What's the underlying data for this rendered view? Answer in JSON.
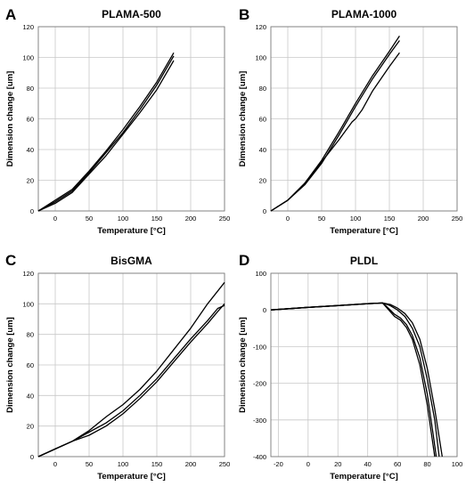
{
  "chart_data": [
    {
      "panel_label": "A",
      "type": "line",
      "title": "PLAMA-500",
      "xlabel": "Temperature [°C]",
      "ylabel": "Dimension change [um]",
      "xlim": [
        -25,
        250
      ],
      "ylim": [
        0,
        120
      ],
      "xticks": [
        0,
        50,
        100,
        150,
        200,
        250
      ],
      "yticks": [
        0,
        20,
        40,
        60,
        80,
        100,
        120
      ],
      "grid": true,
      "series": [
        {
          "x": [
            -25,
            0,
            25,
            50,
            75,
            100,
            125,
            150,
            175
          ],
          "y": [
            0,
            7,
            14,
            26,
            39,
            53,
            68,
            84,
            103
          ]
        },
        {
          "x": [
            -25,
            0,
            25,
            50,
            75,
            100,
            125,
            150,
            175
          ],
          "y": [
            0,
            6,
            13,
            25,
            38,
            51,
            66,
            82,
            101
          ]
        },
        {
          "x": [
            -25,
            0,
            25,
            50,
            75,
            100,
            125,
            150,
            175
          ],
          "y": [
            0,
            5,
            12,
            24,
            36,
            50,
            64,
            79,
            98
          ]
        }
      ]
    },
    {
      "panel_label": "B",
      "type": "line",
      "title": "PLAMA-1000",
      "xlabel": "Temperature [°C]",
      "ylabel": "Dimension change [um]",
      "xlim": [
        -25,
        250
      ],
      "ylim": [
        0,
        120
      ],
      "xticks": [
        0,
        50,
        100,
        150,
        200,
        250
      ],
      "yticks": [
        0,
        20,
        40,
        60,
        80,
        100,
        120
      ],
      "grid": true,
      "series": [
        {
          "x": [
            -25,
            0,
            25,
            50,
            75,
            100,
            125,
            150,
            165
          ],
          "y": [
            0,
            7,
            18,
            33,
            51,
            70,
            88,
            104,
            114
          ]
        },
        {
          "x": [
            -25,
            0,
            25,
            50,
            75,
            100,
            125,
            150,
            165
          ],
          "y": [
            0,
            7,
            17,
            31,
            49,
            68,
            86,
            102,
            111
          ]
        },
        {
          "x": [
            -25,
            0,
            25,
            50,
            75,
            95,
            100,
            110,
            125,
            150,
            165
          ],
          "y": [
            0,
            7,
            18,
            32,
            46,
            58,
            60,
            66,
            78,
            94,
            103
          ]
        }
      ]
    },
    {
      "panel_label": "C",
      "type": "line",
      "title": "BisGMA",
      "xlabel": "Temperature [°C]",
      "ylabel": "Dimension change [um]",
      "xlim": [
        -25,
        250
      ],
      "ylim": [
        0,
        120
      ],
      "xticks": [
        0,
        50,
        100,
        150,
        200,
        250
      ],
      "yticks": [
        0,
        20,
        40,
        60,
        80,
        100,
        120
      ],
      "grid": true,
      "series": [
        {
          "x": [
            -25,
            0,
            25,
            50,
            75,
            100,
            125,
            150,
            175,
            200,
            225,
            250
          ],
          "y": [
            0,
            5,
            10,
            17,
            26,
            34,
            44,
            56,
            70,
            84,
            100,
            114
          ]
        },
        {
          "x": [
            -25,
            0,
            25,
            50,
            75,
            100,
            125,
            150,
            175,
            200,
            225,
            240,
            250
          ],
          "y": [
            0,
            5,
            10,
            16,
            22,
            30,
            40,
            51,
            64,
            77,
            89,
            97,
            99
          ]
        },
        {
          "x": [
            -25,
            0,
            25,
            50,
            75,
            100,
            125,
            150,
            175,
            200,
            225,
            240,
            250
          ],
          "y": [
            0,
            5,
            10,
            14,
            20,
            28,
            38,
            49,
            62,
            75,
            87,
            95,
            100
          ]
        }
      ]
    },
    {
      "panel_label": "D",
      "type": "line",
      "title": "PLDL",
      "xlabel": "Temperature [°C]",
      "ylabel": "Dimension change [um]",
      "xlim": [
        -25,
        100
      ],
      "ylim": [
        -400,
        100
      ],
      "xticks": [
        -20,
        0,
        20,
        40,
        60,
        80,
        100
      ],
      "yticks": [
        -400,
        -300,
        -200,
        -100,
        0,
        100
      ],
      "grid": true,
      "series": [
        {
          "x": [
            -25,
            0,
            20,
            40,
            50,
            55,
            60,
            65,
            70,
            75,
            80,
            85,
            90
          ],
          "y": [
            0,
            7,
            12,
            17,
            19,
            15,
            5,
            -10,
            -35,
            -80,
            -160,
            -270,
            -400
          ]
        },
        {
          "x": [
            -25,
            0,
            20,
            40,
            50,
            55,
            60,
            65,
            70,
            75,
            80,
            85,
            88
          ],
          "y": [
            0,
            7,
            12,
            17,
            19,
            12,
            0,
            -18,
            -50,
            -100,
            -190,
            -300,
            -400
          ]
        },
        {
          "x": [
            -25,
            0,
            20,
            40,
            50,
            53,
            58,
            62,
            66,
            70,
            75,
            80,
            84,
            86
          ],
          "y": [
            0,
            7,
            12,
            17,
            19,
            8,
            -12,
            -22,
            -40,
            -70,
            -130,
            -230,
            -340,
            -400
          ]
        },
        {
          "x": [
            -25,
            0,
            20,
            40,
            50,
            53,
            58,
            62,
            66,
            70,
            75,
            80,
            85
          ],
          "y": [
            0,
            7,
            12,
            17,
            19,
            5,
            -18,
            -28,
            -48,
            -80,
            -150,
            -260,
            -400
          ]
        }
      ]
    }
  ]
}
